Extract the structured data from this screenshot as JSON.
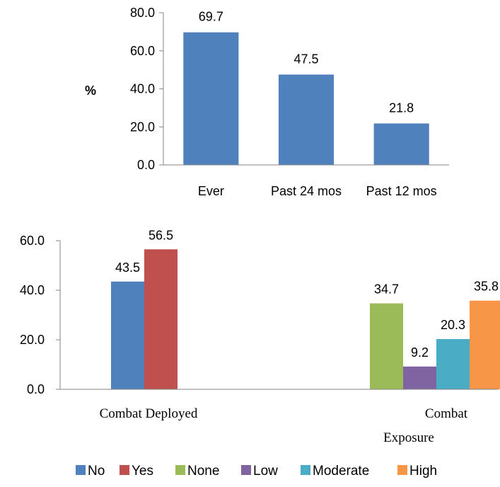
{
  "chart_data": [
    {
      "type": "bar",
      "categories": [
        "Ever",
        "Past 24 mos",
        "Past 12 mos"
      ],
      "values": [
        69.7,
        47.5,
        21.8
      ],
      "data_labels": [
        "69.7",
        "47.5",
        "21.8"
      ],
      "ylabel": "%",
      "ylim": [
        0,
        80
      ],
      "yticks": [
        "0.0",
        "20.0",
        "40.0",
        "60.0",
        "80.0"
      ],
      "grid": false,
      "colors": {
        "bar": "#4f81bd"
      }
    },
    {
      "type": "bar",
      "groups": [
        {
          "label_lines": [
            "Combat Deployed"
          ],
          "series": [
            "No",
            "Yes"
          ]
        },
        {
          "label_lines": [
            "Combat",
            "Exposure"
          ],
          "series": [
            "None",
            "Low",
            "Moderate",
            "High"
          ]
        }
      ],
      "series": [
        {
          "name": "No",
          "value": 43.5,
          "label": "43.5",
          "color": "#4f81bd"
        },
        {
          "name": "Yes",
          "value": 56.5,
          "label": "56.5",
          "color": "#c0504d"
        },
        {
          "name": "None",
          "value": 34.7,
          "label": "34.7",
          "color": "#9bbb59"
        },
        {
          "name": "Low",
          "value": 9.2,
          "label": "9.2",
          "color": "#8064a2"
        },
        {
          "name": "Moderate",
          "value": 20.3,
          "label": "20.3",
          "color": "#4bacc6"
        },
        {
          "name": "High",
          "value": 35.8,
          "label": "35.8",
          "color": "#f79646"
        }
      ],
      "ylim": [
        0,
        60
      ],
      "yticks": [
        "0.0",
        "20.0",
        "40.0",
        "60.0"
      ],
      "grid": false,
      "legend_position": "bottom"
    }
  ]
}
